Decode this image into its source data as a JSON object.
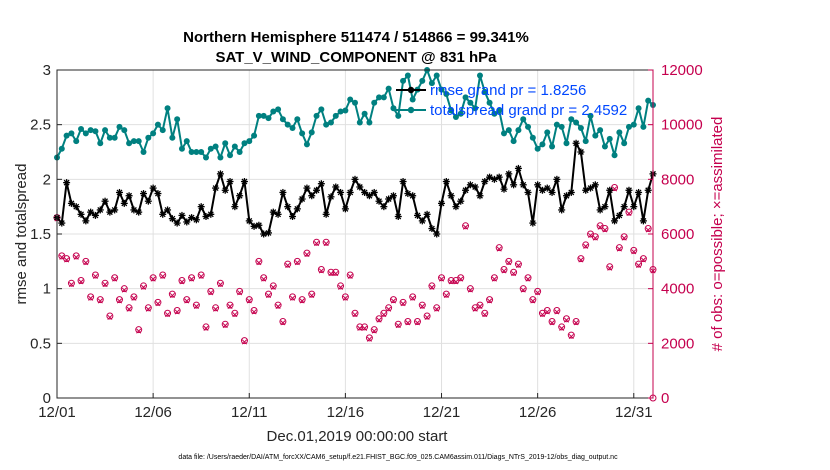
{
  "chart_data": {
    "type": "line",
    "title": "Northern Hemisphere 511474 / 514866 = 99.341%",
    "subtitle": "SAT_V_WIND_COMPONENT @ 831 hPa",
    "xlabel": "Dec.01,2019 00:00:00 start",
    "ylabel": "rmse and totalspread",
    "ylabel_right": "# of obs: o=possible; ×=assimilated",
    "xlim": [
      0,
      31
    ],
    "ylim": [
      0,
      3
    ],
    "ylim_right": [
      0,
      12000
    ],
    "x_ticks": [
      0,
      5,
      10,
      15,
      20,
      25,
      30
    ],
    "x_tick_labels": [
      "12/01",
      "12/06",
      "12/11",
      "12/16",
      "12/21",
      "12/26",
      "12/31"
    ],
    "y_ticks": [
      0,
      0.5,
      1,
      1.5,
      2,
      2.5,
      3
    ],
    "y_tick_labels": [
      "0",
      "0.5",
      "1",
      "1.5",
      "2",
      "2.5",
      "3"
    ],
    "y_ticks_right": [
      0,
      2000,
      4000,
      6000,
      8000,
      10000,
      12000
    ],
    "y_tick_labels_right": [
      "0",
      "2000",
      "4000",
      "6000",
      "8000",
      "10000",
      "12000"
    ],
    "legend": [
      "rmse grand pr = 1.8256",
      "totalspread grand pr = 2.4592"
    ],
    "legend_position": "top-right",
    "colors": {
      "rmse": "#000000",
      "totalspread": "#008080",
      "obs": "#c5004e",
      "legend_text": "#0047ff"
    },
    "x": [
      0.0,
      0.25,
      0.5,
      0.75,
      1.0,
      1.25,
      1.5,
      1.75,
      2.0,
      2.25,
      2.5,
      2.75,
      3.0,
      3.25,
      3.5,
      3.75,
      4.0,
      4.25,
      4.5,
      4.75,
      5.0,
      5.25,
      5.5,
      5.75,
      6.0,
      6.25,
      6.5,
      6.75,
      7.0,
      7.25,
      7.5,
      7.75,
      8.0,
      8.25,
      8.5,
      8.75,
      9.0,
      9.25,
      9.5,
      9.75,
      10.0,
      10.25,
      10.5,
      10.75,
      11.0,
      11.25,
      11.5,
      11.75,
      12.0,
      12.25,
      12.5,
      12.75,
      13.0,
      13.25,
      13.5,
      13.75,
      14.0,
      14.25,
      14.5,
      14.75,
      15.0,
      15.25,
      15.5,
      15.75,
      16.0,
      16.25,
      16.5,
      16.75,
      17.0,
      17.25,
      17.5,
      17.75,
      18.0,
      18.25,
      18.5,
      18.75,
      19.0,
      19.25,
      19.5,
      19.75,
      20.0,
      20.25,
      20.5,
      20.75,
      21.0,
      21.25,
      21.5,
      21.75,
      22.0,
      22.25,
      22.5,
      22.75,
      23.0,
      23.25,
      23.5,
      23.75,
      24.0,
      24.25,
      24.5,
      24.75,
      25.0,
      25.25,
      25.5,
      25.75,
      26.0,
      26.25,
      26.5,
      26.75,
      27.0,
      27.25,
      27.5,
      27.75,
      28.0,
      28.25,
      28.5,
      28.75,
      29.0,
      29.25,
      29.5,
      29.75,
      30.0,
      30.25,
      30.5,
      30.75,
      31.0
    ],
    "series": [
      {
        "name": "rmse",
        "values": [
          1.65,
          1.6,
          1.97,
          1.78,
          1.75,
          1.68,
          1.62,
          1.7,
          1.67,
          1.72,
          1.8,
          1.7,
          1.72,
          1.88,
          1.78,
          1.85,
          1.72,
          1.7,
          1.87,
          1.8,
          1.92,
          1.87,
          1.68,
          1.72,
          1.64,
          1.6,
          1.67,
          1.61,
          1.65,
          1.63,
          1.75,
          1.66,
          1.68,
          1.92,
          2.05,
          1.9,
          1.98,
          1.75,
          1.85,
          1.98,
          1.62,
          1.57,
          1.58,
          1.5,
          1.51,
          1.7,
          1.68,
          1.88,
          1.75,
          1.66,
          1.73,
          1.82,
          1.92,
          1.85,
          1.9,
          1.96,
          1.68,
          1.84,
          1.93,
          1.88,
          1.73,
          1.88,
          2.0,
          1.93,
          1.88,
          1.85,
          1.88,
          1.8,
          1.75,
          1.82,
          1.85,
          1.66,
          1.98,
          1.87,
          1.85,
          1.67,
          1.62,
          1.68,
          1.55,
          1.5,
          1.78,
          1.98,
          1.85,
          1.75,
          1.8,
          1.9,
          1.95,
          1.93,
          1.85,
          1.98,
          2.02,
          2.0,
          2.02,
          1.91,
          2.05,
          1.95,
          2.1,
          1.95,
          1.88,
          1.6,
          1.95,
          1.9,
          1.92,
          1.88,
          2.0,
          1.72,
          1.85,
          1.88,
          2.33,
          2.25,
          1.9,
          1.92,
          1.95,
          1.72,
          1.75,
          1.9,
          1.62,
          1.67,
          1.75,
          1.9,
          1.75,
          1.88,
          1.62,
          1.9,
          2.05
        ]
      },
      {
        "name": "totalspread",
        "values": [
          2.2,
          2.28,
          2.4,
          2.42,
          2.35,
          2.46,
          2.42,
          2.45,
          2.44,
          2.33,
          2.45,
          2.38,
          2.38,
          2.48,
          2.45,
          2.33,
          2.35,
          2.35,
          2.25,
          2.38,
          2.42,
          2.5,
          2.45,
          2.65,
          2.38,
          2.55,
          2.28,
          2.35,
          2.25,
          2.25,
          2.25,
          2.2,
          2.28,
          2.3,
          2.2,
          2.33,
          2.22,
          2.3,
          2.25,
          2.33,
          2.35,
          2.4,
          2.58,
          2.58,
          2.56,
          2.62,
          2.64,
          2.55,
          2.5,
          2.47,
          2.55,
          2.42,
          2.32,
          2.43,
          2.58,
          2.64,
          2.5,
          2.52,
          2.58,
          2.62,
          2.63,
          2.73,
          2.7,
          2.52,
          2.6,
          2.52,
          2.7,
          2.75,
          2.75,
          2.83,
          2.65,
          2.58,
          2.9,
          2.95,
          2.73,
          2.82,
          2.9,
          3.0,
          2.88,
          2.95,
          2.82,
          2.78,
          2.63,
          2.57,
          2.6,
          2.75,
          2.7,
          2.65,
          2.95,
          2.8,
          2.7,
          2.6,
          2.63,
          2.42,
          2.45,
          2.35,
          2.45,
          2.55,
          2.48,
          2.38,
          2.28,
          2.32,
          2.43,
          2.3,
          2.5,
          2.48,
          2.33,
          2.55,
          2.52,
          2.47,
          2.35,
          2.58,
          2.4,
          2.45,
          2.3,
          2.37,
          2.22,
          2.43,
          2.33,
          2.48,
          2.5,
          2.65,
          2.48,
          2.72,
          2.68
        ]
      },
      {
        "name": "obs_possible",
        "values": [
          6600,
          5200,
          5100,
          4200,
          5200,
          4300,
          5000,
          3700,
          4500,
          3600,
          4200,
          3000,
          4400,
          3600,
          4000,
          3300,
          3700,
          2500,
          4100,
          3300,
          4400,
          3500,
          4500,
          3100,
          3800,
          3200,
          4300,
          3600,
          4400,
          3400,
          4500,
          2600,
          3900,
          3300,
          4200,
          2700,
          3400,
          3100,
          3900,
          2100,
          3600,
          3200,
          5000,
          4400,
          3800,
          4100,
          3400,
          2800,
          4900,
          3700,
          5000,
          3600,
          5300,
          3800,
          5700,
          4700,
          5700,
          4600,
          4600,
          4100,
          3700,
          4500,
          3100,
          2600,
          2600,
          2200,
          2500,
          2900,
          3100,
          3300,
          3600,
          2700,
          3500,
          2800,
          3700,
          2800,
          3400,
          3000,
          4100,
          3300,
          4400,
          3800,
          4300,
          4300,
          4400,
          6300,
          4000,
          3300,
          3400,
          3100,
          3600,
          4400,
          5500,
          4700,
          5000,
          4600,
          4900,
          4000,
          4400,
          3600,
          3900,
          3100,
          3200,
          2800,
          3200,
          2600,
          2900,
          2300,
          2800,
          5100,
          5600,
          6000,
          5900,
          6300,
          6200,
          4800,
          7700,
          5500,
          5900,
          6800,
          5400,
          4900,
          5100,
          6200,
          4700
        ]
      },
      {
        "name": "obs_assimilated",
        "values": [
          6550,
          5150,
          5050,
          4150,
          5150,
          4250,
          4950,
          3650,
          4450,
          3550,
          4150,
          2950,
          4350,
          3550,
          3950,
          3250,
          3650,
          2450,
          4050,
          3250,
          4350,
          3450,
          4450,
          3050,
          3750,
          3150,
          4250,
          3550,
          4350,
          3350,
          4450,
          2550,
          3850,
          3250,
          4150,
          2650,
          3350,
          3050,
          3850,
          2050,
          3550,
          3150,
          4950,
          4350,
          3750,
          4050,
          3350,
          2750,
          4850,
          3650,
          4950,
          3550,
          5250,
          3750,
          5650,
          4650,
          5650,
          4550,
          4550,
          4050,
          3650,
          4450,
          3050,
          2550,
          2550,
          2150,
          2450,
          2850,
          3050,
          3250,
          3550,
          2650,
          3450,
          2750,
          3650,
          2750,
          3350,
          2950,
          4050,
          3250,
          4350,
          3750,
          4250,
          4250,
          4350,
          6250,
          3950,
          3250,
          3350,
          3050,
          3550,
          4350,
          5450,
          4650,
          4950,
          4550,
          4850,
          3950,
          4350,
          3550,
          3850,
          3050,
          3150,
          2750,
          3150,
          2550,
          2850,
          2250,
          2750,
          5050,
          5550,
          5950,
          5850,
          6250,
          6150,
          4750,
          7650,
          5450,
          5850,
          6750,
          5350,
          4850,
          5050,
          6150,
          4650
        ]
      }
    ],
    "final_obs_point": {
      "x": 31,
      "value": 0
    }
  },
  "footnote": "data file: /Users/raeder/DAI/ATM_forcXX/CAM6_setup/f.e21.FHIST_BGC.f09_025.CAM6assim.011/Diags_NTrS_2019-12/obs_diag_output.nc"
}
